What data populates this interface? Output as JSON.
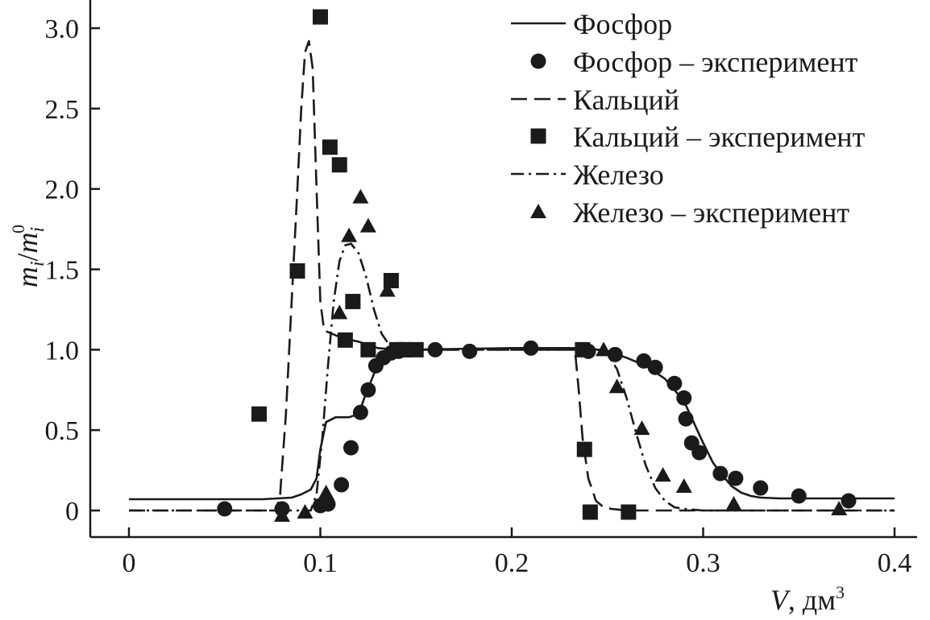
{
  "chart_data": {
    "type": "line",
    "title": "",
    "xlabel": {
      "var": "V",
      "unit": ", дм",
      "sup": "3"
    },
    "ylabel": {
      "m": "m",
      "sub_i": "i",
      "slash": "/",
      "m2": "m",
      "sub_i2": "i",
      "sup_0": "0"
    },
    "xlim": [
      0,
      0.4
    ],
    "ylim": [
      -0.17,
      3.08
    ],
    "xticks": [
      0,
      0.1,
      0.2,
      0.3,
      0.4
    ],
    "xtick_labels": [
      "0",
      "0.1",
      "0.2",
      "0.3",
      "0.4"
    ],
    "yticks": [
      0,
      0.5,
      1.0,
      1.5,
      2.0,
      2.5,
      3.0
    ],
    "ytick_labels": [
      "0",
      "0.5",
      "1.0",
      "1.5",
      "2.0",
      "2.5",
      "3.0"
    ],
    "grid": false,
    "legend_position": "top-right",
    "series": [
      {
        "name": "Фосфор",
        "kind": "line",
        "style": "solid",
        "x": [
          0,
          0.07,
          0.085,
          0.09,
          0.095,
          0.098,
          0.1,
          0.103,
          0.108,
          0.115,
          0.12,
          0.123,
          0.128,
          0.133,
          0.138,
          0.145,
          0.2,
          0.24,
          0.25,
          0.26,
          0.27,
          0.28,
          0.29,
          0.295,
          0.3,
          0.305,
          0.31,
          0.315,
          0.32,
          0.325,
          0.33,
          0.34,
          0.4
        ],
        "y": [
          0.07,
          0.07,
          0.08,
          0.1,
          0.13,
          0.2,
          0.38,
          0.55,
          0.58,
          0.58,
          0.6,
          0.7,
          0.85,
          0.95,
          0.99,
          1.0,
          1.01,
          1.01,
          0.99,
          0.95,
          0.9,
          0.82,
          0.68,
          0.55,
          0.42,
          0.3,
          0.22,
          0.15,
          0.11,
          0.09,
          0.08,
          0.075,
          0.075
        ]
      },
      {
        "name": "Фосфор – эксперимент",
        "kind": "scatter",
        "marker": "circle",
        "x": [
          0.05,
          0.08,
          0.1,
          0.104,
          0.111,
          0.116,
          0.121,
          0.125,
          0.129,
          0.133,
          0.137,
          0.141,
          0.146,
          0.16,
          0.178,
          0.21,
          0.24,
          0.254,
          0.269,
          0.275,
          0.285,
          0.29,
          0.291,
          0.294,
          0.298,
          0.309,
          0.317,
          0.33,
          0.35,
          0.376
        ],
        "y": [
          0.01,
          0.01,
          0.03,
          0.04,
          0.16,
          0.39,
          0.61,
          0.75,
          0.9,
          0.95,
          0.98,
          0.99,
          1.0,
          1.0,
          0.99,
          1.01,
          0.99,
          0.97,
          0.93,
          0.89,
          0.79,
          0.7,
          0.57,
          0.42,
          0.36,
          0.23,
          0.2,
          0.14,
          0.09,
          0.06
        ]
      },
      {
        "name": "Кальций",
        "kind": "line",
        "style": "dashed",
        "x": [
          0,
          0.077,
          0.079,
          0.082,
          0.085,
          0.088,
          0.09,
          0.092,
          0.094,
          0.096,
          0.098,
          0.1,
          0.102,
          0.106,
          0.112,
          0.12,
          0.13,
          0.14,
          0.2,
          0.233,
          0.235,
          0.237,
          0.24,
          0.244,
          0.248,
          0.252,
          0.26,
          0.4
        ],
        "y": [
          0,
          0,
          0.1,
          0.6,
          1.3,
          2.0,
          2.5,
          2.85,
          2.92,
          2.75,
          2.0,
          1.3,
          1.12,
          1.1,
          1.07,
          1.05,
          1.01,
          1.0,
          1.0,
          1.0,
          0.75,
          0.45,
          0.2,
          0.06,
          0.02,
          0.01,
          0,
          0
        ]
      },
      {
        "name": "Кальций – эксперимент",
        "kind": "scatter",
        "marker": "square",
        "x": [
          0.068,
          0.088,
          0.1,
          0.105,
          0.11,
          0.113,
          0.117,
          0.125,
          0.137,
          0.14,
          0.144,
          0.15,
          0.237,
          0.238,
          0.241,
          0.261
        ],
        "y": [
          0.6,
          1.49,
          3.07,
          2.26,
          2.15,
          1.06,
          1.3,
          1.0,
          1.43,
          1.0,
          1.0,
          1.0,
          1.0,
          0.38,
          -0.01,
          -0.01
        ]
      },
      {
        "name": "Железо",
        "kind": "line",
        "style": "dashdot",
        "x": [
          0,
          0.095,
          0.098,
          0.101,
          0.104,
          0.107,
          0.11,
          0.113,
          0.116,
          0.12,
          0.124,
          0.128,
          0.132,
          0.136,
          0.14,
          0.145,
          0.2,
          0.245,
          0.25,
          0.255,
          0.26,
          0.265,
          0.27,
          0.275,
          0.28,
          0.285,
          0.29,
          0.3,
          0.4
        ],
        "y": [
          0,
          0,
          0.1,
          0.45,
          0.9,
          1.3,
          1.55,
          1.65,
          1.66,
          1.6,
          1.45,
          1.25,
          1.1,
          1.03,
          1.0,
          1.0,
          1.0,
          1.0,
          0.97,
          0.88,
          0.7,
          0.48,
          0.28,
          0.14,
          0.06,
          0.02,
          0.01,
          0,
          0
        ]
      },
      {
        "name": "Железо – эксперимент",
        "kind": "scatter",
        "marker": "triangle",
        "x": [
          0.08,
          0.092,
          0.103,
          0.11,
          0.115,
          0.121,
          0.125,
          0.135,
          0.248,
          0.255,
          0.268,
          0.279,
          0.29,
          0.316,
          0.371
        ],
        "y": [
          -0.03,
          -0.01,
          0.11,
          1.23,
          1.71,
          1.95,
          1.77,
          1.37,
          1.0,
          0.77,
          0.51,
          0.22,
          0.15,
          0.04,
          0.01
        ]
      }
    ]
  }
}
